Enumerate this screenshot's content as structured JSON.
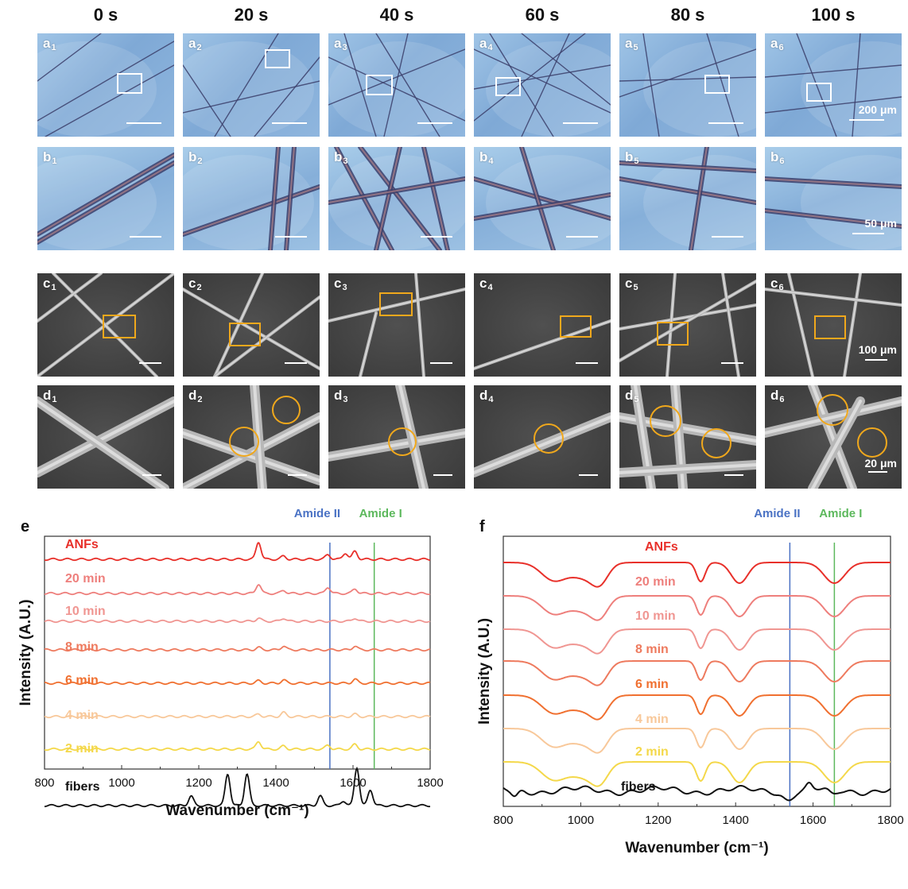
{
  "headers": [
    "0 s",
    "20 s",
    "40 s",
    "60 s",
    "80 s",
    "100 s"
  ],
  "labels": {
    "a": [
      [
        "a",
        "1"
      ],
      [
        "a",
        "2"
      ],
      [
        "a",
        "3"
      ],
      [
        "a",
        "4"
      ],
      [
        "a",
        "5"
      ],
      [
        "a",
        "6"
      ]
    ],
    "b": [
      [
        "b",
        "1"
      ],
      [
        "b",
        "2"
      ],
      [
        "b",
        "3"
      ],
      [
        "b",
        "4"
      ],
      [
        "b",
        "5"
      ],
      [
        "b",
        "6"
      ]
    ],
    "c": [
      [
        "c",
        "1"
      ],
      [
        "c",
        "2"
      ],
      [
        "c",
        "3"
      ],
      [
        "c",
        "4"
      ],
      [
        "c",
        "5"
      ],
      [
        "c",
        "6"
      ]
    ],
    "d": [
      [
        "d",
        "1"
      ],
      [
        "d",
        "2"
      ],
      [
        "d",
        "3"
      ],
      [
        "d",
        "4"
      ],
      [
        "d",
        "5"
      ],
      [
        "d",
        "6"
      ]
    ]
  },
  "scalebars": {
    "a": "200 μm",
    "b": "50 μm",
    "c": "100 μm",
    "d": "20 μm"
  },
  "colors": {
    "box_optical": "#ffffff",
    "box_sem": "#f0a81c",
    "amide_ii": "#4a72c4",
    "amide_i": "#5cb85c",
    "ANFs": "#e8302a",
    "20 min": "#ee7f7c",
    "10 min": "#f09692",
    "8 min": "#ee7a5e",
    "6 min": "#f07030",
    "4 min": "#f8c89a",
    "2 min": "#f4d84a",
    "fibers": "#111111"
  },
  "chart_data": [
    {
      "panel": "e",
      "type": "line",
      "xlabel": "Wavenumber (cm⁻¹)",
      "ylabel": "Intensity (A.U.)",
      "xlim": [
        800,
        1800
      ],
      "xticks": [
        800,
        1000,
        1200,
        1400,
        1600,
        1800
      ],
      "markers": [
        {
          "name": "Amide II",
          "x": 1540
        },
        {
          "name": "Amide I",
          "x": 1655
        }
      ],
      "series": [
        {
          "name": "ANFs",
          "peaks": [
            [
              1355,
              22
            ],
            [
              1420,
              4
            ],
            [
              1535,
              6
            ],
            [
              1580,
              8
            ],
            [
              1605,
              10
            ]
          ]
        },
        {
          "name": "20 min",
          "peaks": [
            [
              1355,
              12
            ],
            [
              1420,
              4
            ],
            [
              1535,
              8
            ],
            [
              1605,
              6
            ]
          ]
        },
        {
          "name": "10 min",
          "peaks": [
            [
              1355,
              4
            ],
            [
              1420,
              4
            ],
            [
              1605,
              4
            ]
          ]
        },
        {
          "name": "8 min",
          "peaks": [
            [
              1355,
              3
            ],
            [
              1420,
              5
            ],
            [
              1605,
              5
            ]
          ]
        },
        {
          "name": "6 min",
          "peaks": [
            [
              1355,
              3
            ],
            [
              1420,
              4
            ],
            [
              1605,
              5
            ]
          ]
        },
        {
          "name": "4 min",
          "peaks": [
            [
              1355,
              3
            ],
            [
              1420,
              5
            ],
            [
              1605,
              3
            ]
          ]
        },
        {
          "name": "2 min",
          "peaks": [
            [
              1355,
              10
            ],
            [
              1420,
              4
            ],
            [
              1535,
              5
            ],
            [
              1605,
              6
            ]
          ]
        },
        {
          "name": "fibers",
          "peaks": [
            [
              1180,
              12
            ],
            [
              1275,
              40
            ],
            [
              1325,
              40
            ],
            [
              1515,
              12
            ],
            [
              1575,
              6
            ],
            [
              1610,
              48
            ],
            [
              1645,
              20
            ]
          ]
        }
      ]
    },
    {
      "panel": "f",
      "type": "line",
      "xlabel": "Wavenumber (cm⁻¹)",
      "ylabel": "Intensity (A.U.)",
      "xlim": [
        800,
        1800
      ],
      "xticks": [
        800,
        1000,
        1200,
        1400,
        1600,
        1800
      ],
      "markers": [
        {
          "name": "Amide II",
          "x": 1540
        },
        {
          "name": "Amide I",
          "x": 1655
        }
      ],
      "series": [
        {
          "name": "ANFs"
        },
        {
          "name": "20 min"
        },
        {
          "name": "10 min"
        },
        {
          "name": "8 min"
        },
        {
          "name": "6 min"
        },
        {
          "name": "4 min"
        },
        {
          "name": "2 min"
        },
        {
          "name": "fibers"
        }
      ]
    }
  ],
  "panel_letters": {
    "e": "e",
    "f": "f"
  }
}
